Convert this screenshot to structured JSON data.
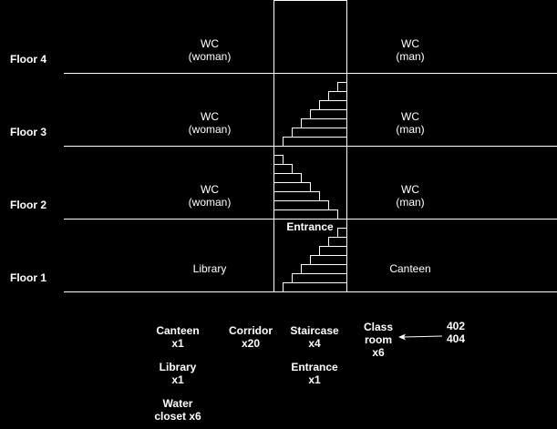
{
  "floors": [
    {
      "label": "Floor 4",
      "left_room": "WC\n(woman)",
      "right_room": "WC\n(man)"
    },
    {
      "label": "Floor 3",
      "left_room": "WC\n(woman)",
      "right_room": "WC\n(man)"
    },
    {
      "label": "Floor 2",
      "left_room": "WC\n(woman)",
      "right_room": "WC\n(man)"
    },
    {
      "label": "Floor 1",
      "left_room": "Library",
      "right_room": "Canteen"
    }
  ],
  "entrance_label": "Entrance",
  "legend": {
    "canteen": "Canteen\nx1",
    "library": "Library\nx1",
    "water_closet": "Water\ncloset x6",
    "corridor": "Corridor\nx20",
    "staircase": "Staircase\nx4",
    "entrance": "Entrance\nx1",
    "classroom": "Class\nroom\nx6",
    "room_numbers": "402\n404"
  },
  "colors": {
    "background": "#000000",
    "line": "#ffffff"
  }
}
